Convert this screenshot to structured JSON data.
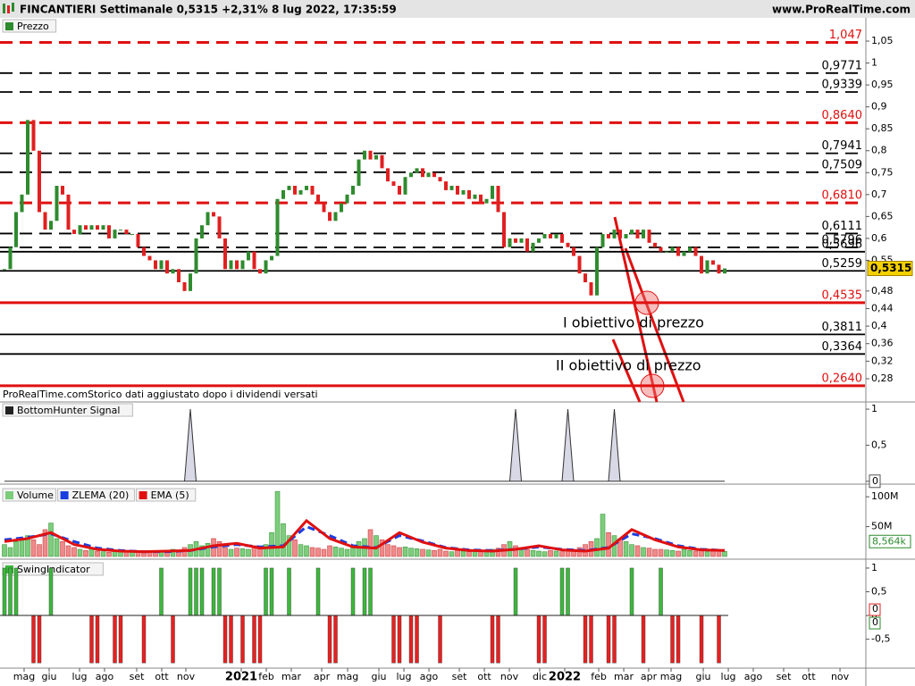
{
  "header": {
    "title": "FINCANTIERI Settimanale 0,5315 +2,31% 8 lug 2022, 17:35:59",
    "site": "www.ProRealTime.com"
  },
  "chart_data": [
    {
      "type": "candlestick",
      "legend": [
        "Prezzo"
      ],
      "note": "ProRealTime.comStorico dati aggiustato dopo i dividendi versati",
      "up_color": "#2e8b2e",
      "down_color": "#e02020",
      "xlim": [
        -0.77,
        148.15
      ],
      "ylim": [
        0.227,
        1.103
      ],
      "yticks": [
        {
          "value": 1.05,
          "label": "1,05"
        },
        1,
        {
          "value": 0.95,
          "label": "0,95"
        },
        {
          "value": 0.9,
          "label": "0,9"
        },
        {
          "value": 0.85,
          "label": "0,85"
        },
        {
          "value": 0.8,
          "label": "0,8"
        },
        {
          "value": 0.75,
          "label": "0,75"
        },
        {
          "value": 0.7,
          "label": "0,7"
        },
        {
          "value": 0.65,
          "label": "0,65"
        },
        {
          "value": 0.6,
          "label": "0,6"
        },
        {
          "value": 0.55,
          "label": "0,55"
        },
        {
          "value": 0.48,
          "label": "0,48"
        },
        {
          "value": 0.44,
          "label": "0,44"
        },
        {
          "value": 0.4,
          "label": "0,4"
        },
        {
          "value": 0.36,
          "label": "0,36"
        },
        {
          "value": 0.32,
          "label": "0,32"
        },
        {
          "value": 0.28,
          "label": "0,28"
        }
      ],
      "values": [
        0.53,
        0.58,
        0.66,
        0.7,
        0.87,
        0.8,
        0.66,
        0.62,
        0.64,
        0.72,
        0.7,
        0.62,
        0.61,
        0.63,
        0.62,
        0.63,
        0.62,
        0.63,
        0.6,
        0.62,
        0.62,
        0.61,
        0.61,
        0.58,
        0.56,
        0.55,
        0.53,
        0.55,
        0.52,
        0.53,
        0.5,
        0.48,
        0.52,
        0.6,
        0.63,
        0.66,
        0.65,
        0.6,
        0.53,
        0.55,
        0.53,
        0.55,
        0.57,
        0.53,
        0.52,
        0.55,
        0.56,
        0.69,
        0.71,
        0.72,
        0.7,
        0.71,
        0.72,
        0.7,
        0.68,
        0.66,
        0.64,
        0.66,
        0.68,
        0.7,
        0.72,
        0.78,
        0.8,
        0.78,
        0.79,
        0.76,
        0.73,
        0.72,
        0.7,
        0.74,
        0.75,
        0.76,
        0.74,
        0.75,
        0.74,
        0.73,
        0.71,
        0.72,
        0.7,
        0.71,
        0.69,
        0.7,
        0.68,
        0.69,
        0.72,
        0.66,
        0.58,
        0.6,
        0.59,
        0.6,
        0.57,
        0.59,
        0.6,
        0.61,
        0.6,
        0.61,
        0.59,
        0.58,
        0.56,
        0.52,
        0.5,
        0.47,
        0.58,
        0.61,
        0.6,
        0.62,
        0.6,
        0.61,
        0.62,
        0.6,
        0.62,
        0.59,
        0.58,
        0.57,
        0.57,
        0.58,
        0.56,
        0.57,
        0.58,
        0.56,
        0.52,
        0.55,
        0.54,
        0.52,
        0.5315
      ],
      "last_price": {
        "value": 0.5315,
        "label": "0,5315"
      },
      "levels": [
        {
          "value": 1.047,
          "label": "1,047",
          "color": "#e01010",
          "style": "dashed"
        },
        {
          "value": 0.9771,
          "label": "0,9771",
          "color": "#000000",
          "style": "dashed"
        },
        {
          "value": 0.9339,
          "label": "0,9339",
          "color": "#000000",
          "style": "dashed"
        },
        {
          "value": 0.864,
          "label": "0,8640",
          "color": "#e01010",
          "style": "dashed"
        },
        {
          "value": 0.7941,
          "label": "0,7941",
          "color": "#000000",
          "style": "dashed"
        },
        {
          "value": 0.7509,
          "label": "0,7509",
          "color": "#000000",
          "style": "dashed"
        },
        {
          "value": 0.681,
          "label": "0,6810",
          "color": "#e01010",
          "style": "dashed"
        },
        {
          "value": 0.6111,
          "label": "0,6111",
          "color": "#000000",
          "style": "dashed"
        },
        {
          "value": 0.5796,
          "label": "0,5796",
          "color": "#000000",
          "style": "dashed"
        },
        {
          "value": 0.5696,
          "label": "0,5696",
          "color": "#000000",
          "style": "solid"
        },
        {
          "value": 0.5259,
          "label": "0,5259",
          "color": "#000000",
          "style": "solid"
        },
        {
          "value": 0.4535,
          "label": "0,4535",
          "color": "#e01010",
          "style": "solid"
        },
        {
          "value": 0.3811,
          "label": "0,3811",
          "color": "#000000",
          "style": "solid"
        },
        {
          "value": 0.3364,
          "label": "0,3364",
          "color": "#000000",
          "style": "solid"
        },
        {
          "value": 0.264,
          "label": "0,2640",
          "color": "#e01010",
          "style": "solid"
        }
      ],
      "annotations": [
        "I obiettivo di prezzo",
        "II obiettivo di prezzo"
      ]
    },
    {
      "type": "line",
      "legend": [
        "BottomHunter Signal"
      ],
      "xlim": [
        -0.77,
        148.15
      ],
      "ylim": [
        -0.04,
        1.1
      ],
      "yticks": [
        1,
        {
          "value": 0.5,
          "label": "0,5"
        },
        0
      ],
      "x": [
        0,
        31,
        32,
        33,
        87,
        88,
        89,
        96,
        97,
        98,
        104,
        105,
        106,
        124
      ],
      "values": [
        0,
        0,
        1,
        0,
        0,
        1,
        0,
        0,
        1,
        0,
        0,
        1,
        0,
        0
      ],
      "color": "#d8d8e6",
      "last_label": 0
    },
    {
      "type": "bar",
      "legend": [
        "Volume",
        "ZLEMA (20)",
        "EMA (5)"
      ],
      "xlim": [
        -0.77,
        148.15
      ],
      "ylim": [
        -4.5,
        116.7
      ],
      "yticks": [
        {
          "value": 100,
          "label": "100M"
        },
        {
          "value": 50,
          "label": "50M"
        }
      ],
      "values": [
        20,
        15,
        25,
        30,
        35,
        28,
        20,
        45,
        56,
        30,
        25,
        18,
        15,
        12,
        10,
        14,
        9,
        8,
        7,
        10,
        9,
        8,
        7,
        8,
        6,
        7,
        9,
        10,
        8,
        12,
        9,
        15,
        20,
        25,
        18,
        22,
        30,
        25,
        15,
        12,
        14,
        13,
        12,
        18,
        16,
        20,
        40,
        109,
        55,
        35,
        28,
        20,
        18,
        15,
        14,
        12,
        18,
        16,
        14,
        12,
        18,
        25,
        30,
        45,
        35,
        28,
        20,
        18,
        15,
        16,
        14,
        13,
        12,
        11,
        10,
        12,
        9,
        8,
        10,
        9,
        8,
        9,
        10,
        8,
        12,
        14,
        20,
        25,
        18,
        15,
        12,
        10,
        9,
        8,
        10,
        9,
        8,
        10,
        12,
        15,
        20,
        25,
        30,
        71,
        40,
        35,
        30,
        25,
        20,
        18,
        15,
        14,
        12,
        12,
        11,
        10,
        9,
        12,
        10,
        9,
        10,
        8,
        9,
        10,
        8.564
      ],
      "colors": [
        "#7ccd7c",
        "#f08a8a"
      ],
      "last_label": {
        "value": 8.564,
        "label": "8,564k"
      },
      "series": [
        {
          "name": "ZLEMA (20)",
          "color": "#1a3de0",
          "dash": true,
          "x": [
            0,
            4,
            8,
            12,
            16,
            20,
            24,
            28,
            32,
            36,
            40,
            44,
            48,
            52,
            56,
            60,
            64,
            68,
            72,
            76,
            80,
            84,
            88,
            92,
            96,
            100,
            104,
            108,
            112,
            116,
            120,
            124
          ],
          "values": [
            28,
            32,
            38,
            25,
            14,
            10,
            8,
            8,
            10,
            16,
            20,
            16,
            18,
            50,
            35,
            18,
            15,
            35,
            26,
            15,
            11,
            10,
            12,
            16,
            12,
            10,
            15,
            38,
            30,
            18,
            12,
            10
          ]
        },
        {
          "name": "EMA (5)",
          "color": "#e01010",
          "dash": false,
          "x": [
            0,
            4,
            8,
            12,
            16,
            20,
            24,
            28,
            32,
            36,
            40,
            44,
            48,
            52,
            56,
            60,
            64,
            68,
            72,
            76,
            80,
            84,
            88,
            92,
            96,
            100,
            104,
            108,
            112,
            116,
            120,
            124
          ],
          "values": [
            25,
            30,
            40,
            20,
            12,
            9,
            8,
            9,
            10,
            18,
            22,
            14,
            16,
            60,
            30,
            16,
            14,
            40,
            24,
            14,
            10,
            9,
            12,
            18,
            11,
            9,
            14,
            45,
            28,
            16,
            11,
            10
          ]
        }
      ]
    },
    {
      "type": "bar",
      "legend": [
        "SwingIndicator"
      ],
      "xlim": [
        -0.77,
        148.15
      ],
      "ylim": [
        -1.11,
        1.15
      ],
      "yticks": [
        1,
        {
          "value": 0.5,
          "label": "0,5"
        },
        0,
        {
          "value": -0.5,
          "label": "-0,5"
        }
      ],
      "x": [
        0,
        1,
        2,
        8,
        27,
        32,
        33,
        34,
        36,
        37,
        45,
        46,
        49,
        54,
        60,
        62,
        63,
        88,
        96,
        97,
        108,
        113,
        5,
        6,
        15,
        16,
        19,
        20,
        24,
        29,
        38,
        39,
        41,
        43,
        44,
        56,
        57,
        67,
        68,
        70,
        71,
        75,
        84,
        85,
        92,
        93,
        100,
        101,
        104,
        105,
        110,
        115,
        116,
        120,
        123
      ],
      "values": [
        1,
        1,
        1,
        1,
        1,
        1,
        1,
        1,
        1,
        1,
        1,
        1,
        1,
        1,
        1,
        1,
        1,
        1,
        1,
        1,
        1,
        1,
        -1,
        -1,
        -1,
        -1,
        -1,
        -1,
        -1,
        -1,
        -1,
        -1,
        -1,
        -1,
        -1,
        -1,
        -1,
        -1,
        -1,
        -1,
        -1,
        -1,
        -1,
        -1,
        -1,
        -1,
        -1,
        -1,
        -1,
        -1,
        -1,
        -1,
        -1,
        -1,
        -1
      ],
      "colors": [
        "#3cb83c",
        "#e82020"
      ],
      "last_labels": [
        0,
        0
      ],
      "xticks": [
        {
          "value": 3.38,
          "label": "mag"
        },
        {
          "value": 7.69,
          "label": "giu"
        },
        {
          "value": 12.92,
          "label": "lug"
        },
        {
          "value": 17.23,
          "label": "ago"
        },
        {
          "value": 22.77,
          "label": "set"
        },
        {
          "value": 27.08,
          "label": "ott"
        },
        {
          "value": 31.23,
          "label": "nov"
        },
        {
          "value": 40.77,
          "label": "2021"
        },
        {
          "value": 45.08,
          "label": "feb"
        },
        {
          "value": 49.38,
          "label": "mar"
        },
        {
          "value": 54.62,
          "label": "apr"
        },
        {
          "value": 59.08,
          "label": "mag"
        },
        {
          "value": 64.46,
          "label": "giu"
        },
        {
          "value": 68.77,
          "label": "lug"
        },
        {
          "value": 73.08,
          "label": "ago"
        },
        {
          "value": 78.31,
          "label": "set"
        },
        {
          "value": 82.62,
          "label": "ott"
        },
        {
          "value": 86.92,
          "label": "nov"
        },
        {
          "value": 92.15,
          "label": "dic"
        },
        {
          "value": 96.46,
          "label": "2022"
        },
        {
          "value": 102.31,
          "label": "feb"
        },
        {
          "value": 106.62,
          "label": "mar"
        },
        {
          "value": 110.92,
          "label": "apr"
        },
        {
          "value": 114.77,
          "label": "mag"
        },
        {
          "value": 120.31,
          "label": "giu"
        },
        {
          "value": 124.62,
          "label": "lug"
        },
        {
          "value": 128.92,
          "label": "ago"
        },
        {
          "value": 134.15,
          "label": "set"
        },
        {
          "value": 138.46,
          "label": "ott"
        },
        {
          "value": 143.85,
          "label": "nov"
        }
      ]
    }
  ]
}
